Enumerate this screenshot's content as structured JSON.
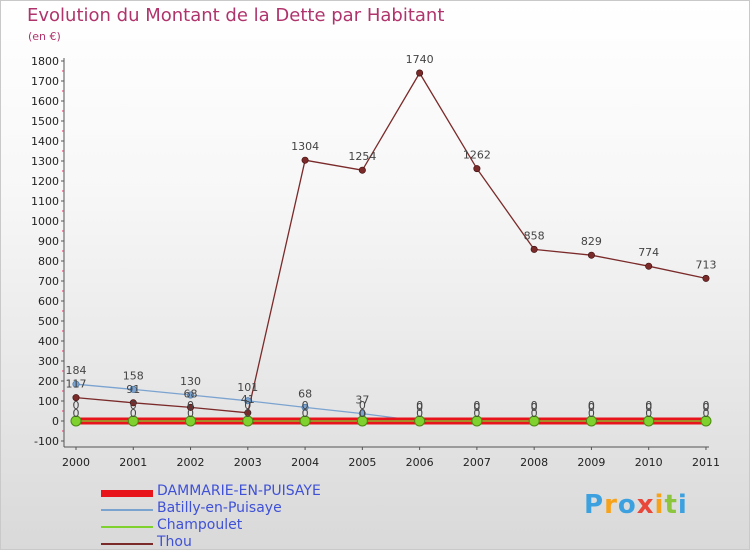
{
  "chart_data": {
    "type": "line",
    "title": "Evolution du Montant de la Dette par Habitant",
    "subtitle": "(en €)",
    "xlabel": "",
    "ylabel": "",
    "x": [
      "2000",
      "2001",
      "2002",
      "2003",
      "2004",
      "2005",
      "2006",
      "2007",
      "2008",
      "2009",
      "2010",
      "2011"
    ],
    "ylim": [
      -100,
      1800
    ],
    "yticks": [
      -100,
      0,
      100,
      200,
      300,
      400,
      500,
      600,
      700,
      800,
      900,
      1000,
      1100,
      1200,
      1300,
      1400,
      1500,
      1600,
      1700,
      1800
    ],
    "grid": false,
    "legend_position": "bottom-left",
    "series": [
      {
        "name": "DAMMARIE-EN-PUISAYE",
        "color": "#e8141b",
        "values": [
          0,
          0,
          0,
          0,
          0,
          0,
          0,
          0,
          0,
          0,
          0,
          0
        ],
        "labels": [
          "0",
          "0",
          "0",
          "0",
          "0",
          "0",
          "0",
          "0",
          "0",
          "0",
          "0",
          "0"
        ]
      },
      {
        "name": "Batilly-en-Puisaye",
        "color": "#7ba3d0",
        "values": [
          184,
          158,
          130,
          101,
          68,
          37,
          0,
          0,
          0,
          0,
          0,
          0
        ],
        "labels": [
          "184",
          "158",
          "130",
          "101",
          "68",
          "37",
          "0",
          "0",
          "0",
          "0",
          "0",
          "0"
        ]
      },
      {
        "name": "Champoulet",
        "color": "#7fd12e",
        "values": [
          0,
          0,
          0,
          0,
          0,
          0,
          0,
          0,
          0,
          0,
          0,
          0
        ],
        "labels": [
          "0",
          "0",
          "0",
          "0",
          "0",
          "0",
          "0",
          "0",
          "0",
          "0",
          "0",
          "0"
        ]
      },
      {
        "name": "Thou",
        "color": "#7b2a2a",
        "values": [
          117,
          91,
          68,
          41,
          1304,
          1254,
          1740,
          1262,
          858,
          829,
          774,
          713
        ],
        "labels": [
          "117",
          "91",
          "68",
          "41",
          "1304",
          "1254",
          "1740",
          "1262",
          "858",
          "829",
          "774",
          "713"
        ]
      }
    ]
  },
  "logo": {
    "letters": [
      "P",
      "r",
      "o",
      "x",
      "i",
      "t",
      "i"
    ],
    "colors": [
      "#3da1e0",
      "#f7a21b",
      "#3da1e0",
      "#e8473a",
      "#f7a21b",
      "#8cc63f",
      "#3da1e0"
    ]
  }
}
